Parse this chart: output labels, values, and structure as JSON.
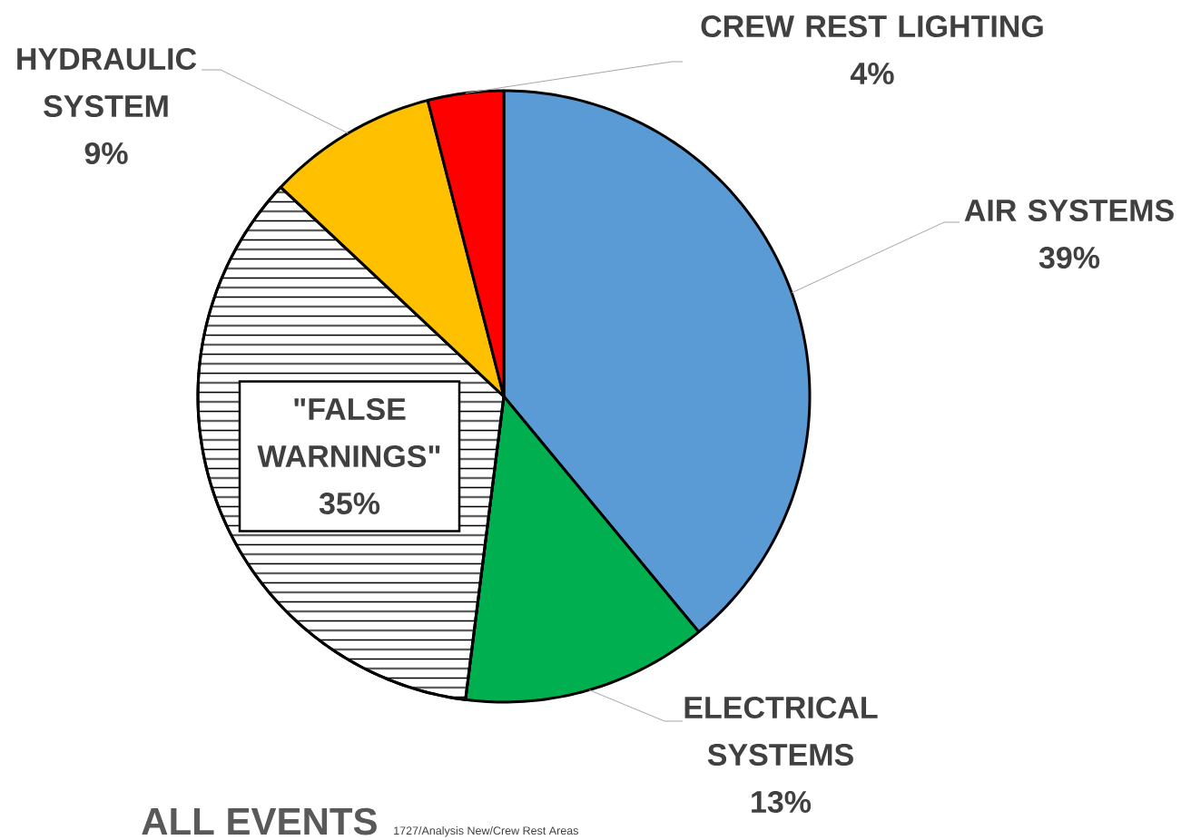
{
  "chart_data": {
    "type": "pie",
    "title": "ALL EVENTS",
    "categories": [
      "AIR SYSTEMS",
      "ELECTRICAL SYSTEMS",
      "\"FALSE WARNINGS\"",
      "HYDRAULIC SYSTEM",
      "CREW REST LIGHTING"
    ],
    "values": [
      39,
      13,
      35,
      9,
      4
    ],
    "value_labels": [
      "39%",
      "13%",
      "35%",
      "9%",
      "4%"
    ],
    "colors": [
      "#5b9bd5",
      "#00b050",
      "#ffffff",
      "#ffc000",
      "#ff0000"
    ],
    "annotations": [
      "1727/Analysis New/Crew Rest Areas"
    ]
  }
}
